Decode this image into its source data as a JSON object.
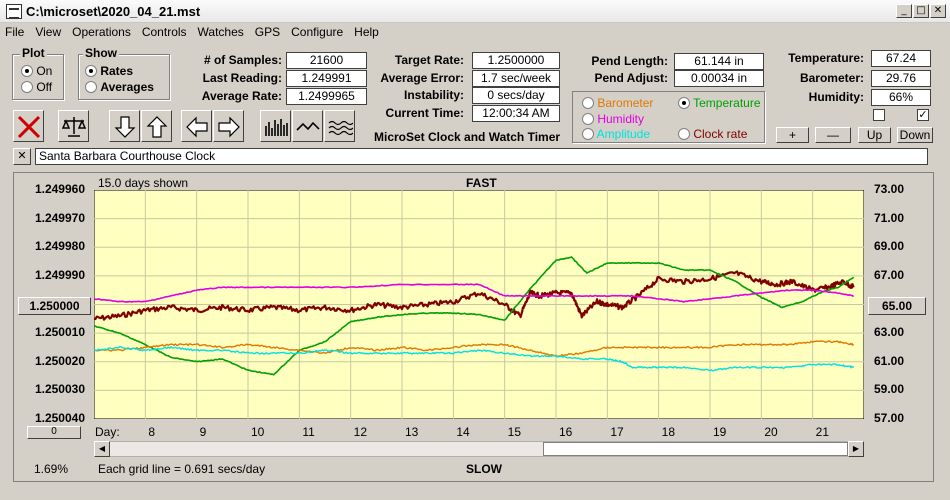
{
  "window": {
    "title": "C:\\microset\\2020_04_21.mst"
  },
  "menu": [
    "File",
    "View",
    "Operations",
    "Controls",
    "Watches",
    "GPS",
    "Configure",
    "Help"
  ],
  "plot_group": {
    "label": "Plot",
    "on": "On",
    "off": "Off",
    "selected": "On"
  },
  "show_group": {
    "label": "Show",
    "rates": "Rates",
    "averages": "Averages",
    "selected": "Rates"
  },
  "stats": {
    "samples_label": "# of Samples:",
    "samples": "21600",
    "last_reading_label": "Last Reading:",
    "last_reading": "1.249991",
    "avg_rate_label": "Average Rate:",
    "avg_rate": "1.2499965",
    "target_rate_label": "Target Rate:",
    "target_rate": "1.2500000",
    "avg_error_label": "Average Error:",
    "avg_error": "1.7 sec/week",
    "instability_label": "Instability:",
    "instability": "0 secs/day",
    "current_time_label": "Current Time:",
    "current_time": "12:00:34 AM",
    "pend_length_label": "Pend Length:",
    "pend_length": "61.144 in",
    "pend_adjust_label": "Pend Adjust:",
    "pend_adjust": "0.00034 in"
  },
  "app_caption": "MicroSet Clock and Watch Timer",
  "sensor_options": {
    "barometer": "Barometer",
    "temperature": "Temperature",
    "humidity": "Humidity",
    "amplitude": "Amplitude",
    "clock_rate": "Clock rate",
    "selected": "Temperature",
    "colors": {
      "barometer": "#e07800",
      "temperature": "#00a000",
      "humidity": "#e000e0",
      "amplitude": "#00e0e0",
      "clock_rate": "#800000"
    }
  },
  "env": {
    "temperature_label": "Temperature:",
    "temperature": "67.24",
    "barometer_label": "Barometer:",
    "barometer": "29.76",
    "humidity_label": "Humidity:",
    "humidity": "66%",
    "buttons": [
      "+",
      "—",
      "Up",
      "Down"
    ],
    "check1": false,
    "check2": true
  },
  "clock_name": "Santa Barbara Courthouse Clock",
  "plot": {
    "days_shown": "15.0 days shown",
    "top_label": "FAST",
    "bottom_label": "SLOW",
    "grid_note": "Each grid line = 0.691 secs/day",
    "percent": "1.69%",
    "center_left": "1.250000",
    "center_right": "65.00",
    "y_left": [
      "1.249960",
      "1.249970",
      "1.249980",
      "1.249990",
      "1.250000",
      "1.250010",
      "1.250020",
      "1.250030",
      "1.250040"
    ],
    "y_right": [
      "73.00",
      "71.00",
      "69.00",
      "67.00",
      "65.00",
      "63.00",
      "61.00",
      "59.00",
      "57.00"
    ],
    "x_title": "Day:",
    "x_days": [
      "8",
      "9",
      "10",
      "11",
      "12",
      "13",
      "14",
      "15",
      "16",
      "17",
      "18",
      "19",
      "20",
      "21"
    ],
    "slider_text": "0"
  },
  "chart_data": {
    "type": "line",
    "x_start_day": 7.0,
    "x_end_day": 22.0,
    "ylim_left": [
      1.24996,
      1.25004
    ],
    "ylim_right": [
      57,
      73
    ],
    "series": [
      {
        "name": "Clock rate",
        "color": "#800000",
        "axis": "left",
        "x": [
          7.0,
          7.5,
          8.0,
          8.5,
          9.0,
          9.5,
          10.0,
          10.5,
          11.0,
          11.5,
          12.0,
          12.5,
          13.0,
          13.5,
          14.0,
          14.5,
          15.0,
          15.3,
          15.5,
          15.7,
          16.0,
          16.3,
          16.5,
          16.8,
          17.0,
          17.3,
          17.6,
          18.0,
          18.5,
          19.0,
          19.5,
          20.0,
          20.3,
          20.6,
          21.0,
          21.3,
          21.6,
          21.8
        ],
        "y": [
          1.250005,
          1.250004,
          1.250002,
          1.250001,
          1.250002,
          1.250001,
          1.250002,
          1.250001,
          1.250002,
          1.250001,
          1.250002,
          1.25,
          1.250001,
          1.25,
          1.249999,
          1.249996,
          1.25,
          1.250004,
          1.249996,
          1.249997,
          1.249996,
          1.249996,
          1.250004,
          1.249999,
          1.25,
          1.250001,
          1.249997,
          1.249991,
          1.249992,
          1.249991,
          1.249989,
          1.249992,
          1.249993,
          1.249992,
          1.249995,
          1.249994,
          1.249992,
          1.249994
        ]
      },
      {
        "name": "Temperature",
        "color": "#00a000",
        "axis": "right",
        "x": [
          7.0,
          7.5,
          8.0,
          8.5,
          9.0,
          9.5,
          10.0,
          10.5,
          11.0,
          11.5,
          12.0,
          12.5,
          13.0,
          13.5,
          14.0,
          14.5,
          15.0,
          15.5,
          16.0,
          16.3,
          16.6,
          17.0,
          17.5,
          18.0,
          18.5,
          19.0,
          19.5,
          20.0,
          20.4,
          20.8,
          21.2,
          21.5,
          21.8
        ],
        "y": [
          63.5,
          63.0,
          62.2,
          61.3,
          61.0,
          61.2,
          60.4,
          60.1,
          61.8,
          62.4,
          63.8,
          64.1,
          64.3,
          64.4,
          64.4,
          64.3,
          63.9,
          66.1,
          68.1,
          68.3,
          67.2,
          67.9,
          67.9,
          67.9,
          67.4,
          67.4,
          66.6,
          65.5,
          64.8,
          65.2,
          65.9,
          66.2,
          66.9
        ]
      },
      {
        "name": "Humidity",
        "color": "#e000e0",
        "axis": "left",
        "x": [
          7.0,
          7.5,
          8.0,
          8.5,
          9.0,
          9.5,
          10.0,
          11.0,
          12.0,
          13.0,
          14.0,
          14.5,
          15.0,
          15.5,
          16.0,
          16.5,
          17.0,
          17.5,
          18.0,
          18.5,
          19.0,
          19.5,
          20.0,
          20.5,
          21.0,
          21.5,
          21.8
        ],
        "y": [
          1.249998,
          1.249999,
          1.249999,
          1.249997,
          1.249995,
          1.249994,
          1.249994,
          1.249994,
          1.249994,
          1.249993,
          1.249993,
          1.249993,
          1.249997,
          1.249997,
          1.249997,
          1.249997,
          1.249997,
          1.249997,
          1.249998,
          1.249999,
          1.249998,
          1.249997,
          1.249996,
          1.249995,
          1.249995,
          1.249996,
          1.249997
        ]
      },
      {
        "name": "Barometer",
        "color": "#e07800",
        "axis": "left",
        "x": [
          7.0,
          7.5,
          8.0,
          8.5,
          9.0,
          9.5,
          10.0,
          10.5,
          11.0,
          11.5,
          12.0,
          12.5,
          13.0,
          13.5,
          14.0,
          14.5,
          15.0,
          15.5,
          16.0,
          16.5,
          17.0,
          17.5,
          18.0,
          18.5,
          19.0,
          19.5,
          20.0,
          20.5,
          21.0,
          21.5,
          21.8
        ],
        "y": [
          1.250016,
          1.250016,
          1.250015,
          1.250014,
          1.250014,
          1.250015,
          1.250014,
          1.250015,
          1.250016,
          1.250017,
          1.250015,
          1.250016,
          1.250015,
          1.250016,
          1.250015,
          1.250014,
          1.250014,
          1.250016,
          1.250018,
          1.250017,
          1.250015,
          1.250015,
          1.250015,
          1.250015,
          1.250015,
          1.250014,
          1.250014,
          1.250014,
          1.250013,
          1.250013,
          1.250014
        ]
      },
      {
        "name": "Amplitude",
        "color": "#00e0e0",
        "axis": "left",
        "x": [
          7.0,
          7.5,
          8.0,
          8.5,
          9.0,
          9.5,
          10.0,
          10.5,
          11.0,
          11.5,
          12.0,
          12.5,
          13.0,
          13.5,
          14.0,
          14.5,
          15.0,
          15.5,
          16.0,
          16.5,
          17.0,
          17.3,
          17.5,
          18.0,
          18.5,
          19.0,
          19.5,
          20.0,
          20.5,
          21.0,
          21.5,
          21.8
        ],
        "y": [
          1.250016,
          1.250015,
          1.250016,
          1.250015,
          1.250016,
          1.250016,
          1.250017,
          1.250017,
          1.250017,
          1.250016,
          1.250017,
          1.250017,
          1.250017,
          1.250017,
          1.250017,
          1.250016,
          1.250017,
          1.250018,
          1.250018,
          1.250019,
          1.250019,
          1.25002,
          1.250022,
          1.250022,
          1.250022,
          1.250023,
          1.250022,
          1.250022,
          1.250022,
          1.250021,
          1.250021,
          1.250022
        ]
      }
    ]
  }
}
